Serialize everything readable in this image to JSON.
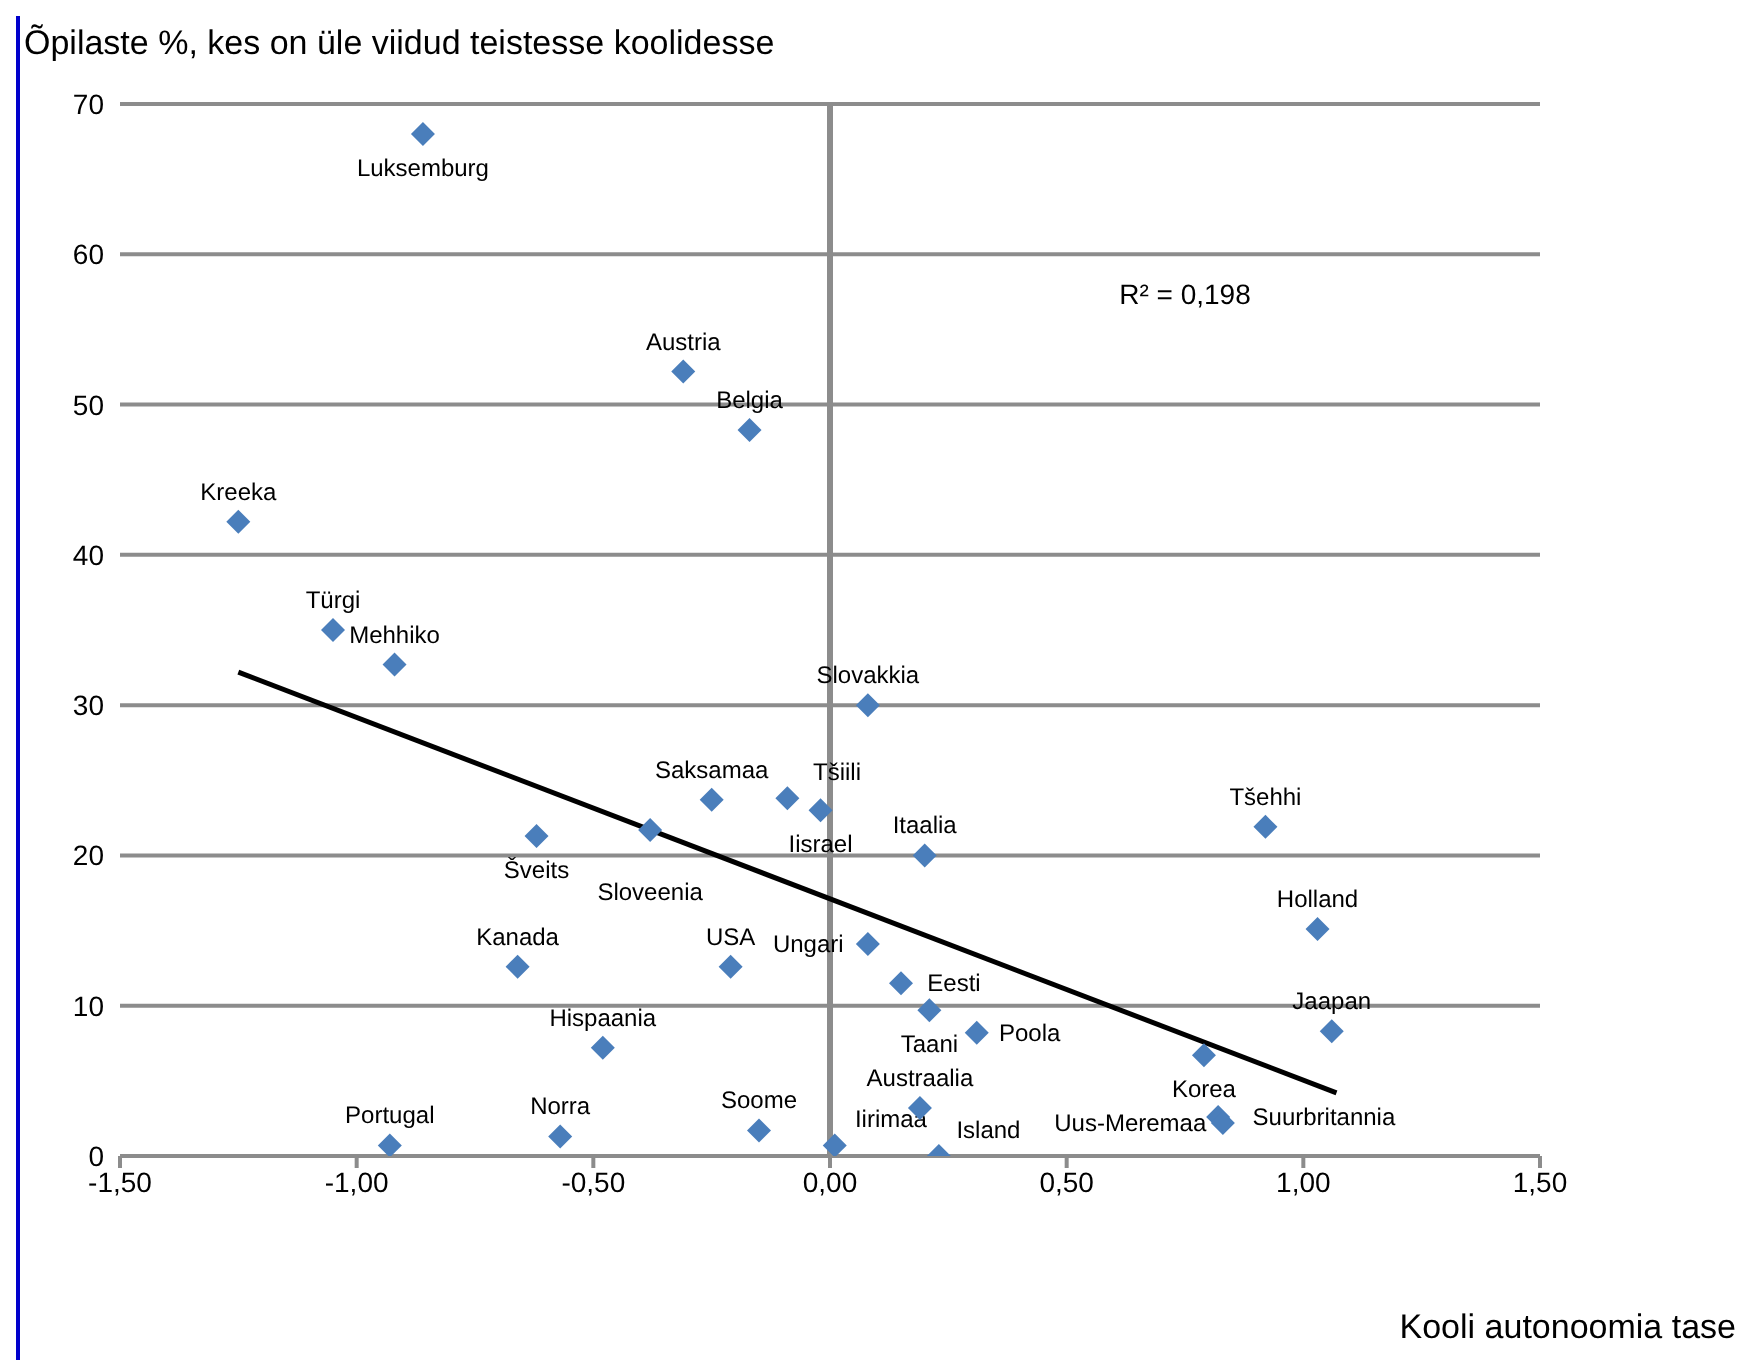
{
  "chart_data": {
    "type": "scatter",
    "xlabel": "Kooli autonoomia tase",
    "ylabel": "Õpilaste %, kes on üle viidud  teistesse koolidesse",
    "series": [
      {
        "color": "#4a7ebb",
        "marker": "diamond",
        "x": [
          -0.86,
          -0.31,
          -0.17,
          -1.25,
          -1.05,
          -0.92,
          0.08,
          -0.25,
          -0.09,
          -0.02,
          -0.62,
          -0.38,
          0.2,
          0.92,
          1.03,
          0.08,
          0.15,
          0.21,
          0.31,
          0.79,
          1.06,
          -0.66,
          -0.21,
          -0.48,
          -0.93,
          -0.57,
          -0.15,
          0.01,
          0.23,
          0.19,
          0.82,
          0.83
        ],
        "values": [
          68,
          52.2,
          48.3,
          42.2,
          35,
          32.7,
          30,
          23.7,
          23.8,
          23,
          21.3,
          21.7,
          20,
          21.9,
          15.1,
          14.1,
          11.5,
          9.7,
          8.2,
          6.7,
          8.3,
          12.6,
          12.6,
          7.2,
          0.7,
          1.3,
          1.7,
          0.7,
          0,
          3.2,
          2.6,
          2.2
        ],
        "value_labels": [
          "Luksemburg",
          "Austria",
          "Belgia",
          "Kreeka",
          "Türgi",
          "Mehhiko",
          "Slovakkia",
          "Saksamaa",
          "Tšiili",
          "Iisrael",
          "Šveits",
          "Sloveenia",
          "Itaalia",
          "Tšehhi",
          "Holland",
          "Ungari",
          "Eesti",
          "Taani",
          "Poola",
          "Korea",
          "Jaapan",
          "Kanada",
          "USA",
          "Hispaania",
          "Portugal",
          "Norra",
          "Soome",
          "Iirimaa",
          "Island",
          "Austraalia",
          "Suurbritannia",
          "Uus-Meremaa"
        ]
      },
      {
        "type": "line",
        "color": "#000000",
        "x": [
          -1.25,
          1.07
        ],
        "values": [
          32.2,
          4.2
        ]
      }
    ],
    "xlim": [
      -1.5,
      1.5
    ],
    "xticks": [
      {
        "value": -1.5,
        "label": "-1,50"
      },
      {
        "value": -1,
        "label": "-1,00"
      },
      {
        "value": -0.5,
        "label": "-0,50"
      },
      {
        "value": 0,
        "label": "0,00"
      },
      {
        "value": 0.5,
        "label": "0,50"
      },
      {
        "value": 1,
        "label": "1,00"
      },
      {
        "value": 1.5,
        "label": "1,50"
      }
    ],
    "ylim": [
      0,
      70
    ],
    "yticks": [
      0,
      10,
      20,
      30,
      40,
      50,
      60,
      70
    ],
    "grid": "y",
    "ref_lines": [
      {
        "axis": "x",
        "value": 0,
        "color": "#8c8c8c"
      }
    ],
    "annotations": [
      {
        "text": "R² = 0,198"
      }
    ]
  }
}
